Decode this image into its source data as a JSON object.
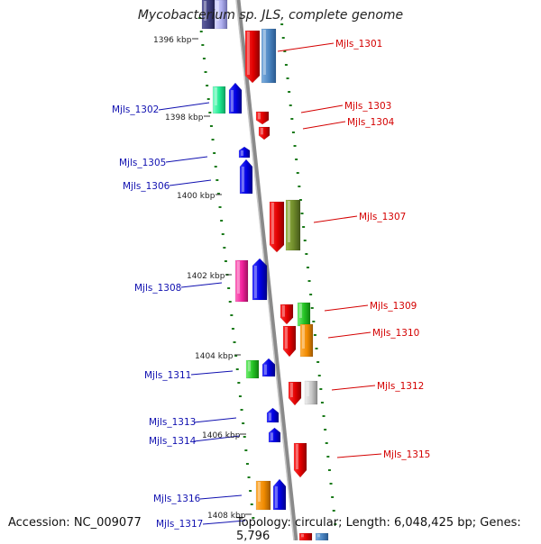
{
  "title": "Mycobacterium sp. JLS, complete genome",
  "footer": {
    "accession": "Accession: NC_009077",
    "stats": "Topology: circular; Length: 6,048,425 bp; Genes: 5,796"
  },
  "colors": {
    "backbone": "#808080",
    "tick": "#1a7a1a",
    "forward_label": "#d40000",
    "reverse_label": "#1010b0",
    "kbp_label": "#222222"
  },
  "kbp_labels": [
    "1396 kbp",
    "1398 kbp",
    "1400 kbp",
    "1402 kbp",
    "1404 kbp",
    "1406 kbp",
    "1408 kbp"
  ],
  "genes_right": [
    {
      "label": "Mjls_1301",
      "color": "#e00000"
    },
    {
      "label": "Mjls_1303",
      "color": "#e00000"
    },
    {
      "label": "Mjls_1304",
      "color": "#e00000"
    },
    {
      "label": "Mjls_1307",
      "color": "#e00000"
    },
    {
      "label": "Mjls_1309",
      "color": "#e00000"
    },
    {
      "label": "Mjls_1310",
      "color": "#e00000"
    },
    {
      "label": "Mjls_1312",
      "color": "#e00000"
    },
    {
      "label": "Mjls_1315",
      "color": "#e00000"
    }
  ],
  "genes_left": [
    {
      "label": "Mjls_1302",
      "color": "#0000e0"
    },
    {
      "label": "Mjls_1305",
      "color": "#0000e0"
    },
    {
      "label": "Mjls_1306",
      "color": "#0000e0"
    },
    {
      "label": "Mjls_1308",
      "color": "#0000e0"
    },
    {
      "label": "Mjls_1311",
      "color": "#0000e0"
    },
    {
      "label": "Mjls_1313",
      "color": "#0000e0"
    },
    {
      "label": "Mjls_1314",
      "color": "#0000e0"
    },
    {
      "label": "Mjls_1316",
      "color": "#0000e0"
    },
    {
      "label": "Mjls_1317",
      "color": "#0000e0"
    }
  ]
}
